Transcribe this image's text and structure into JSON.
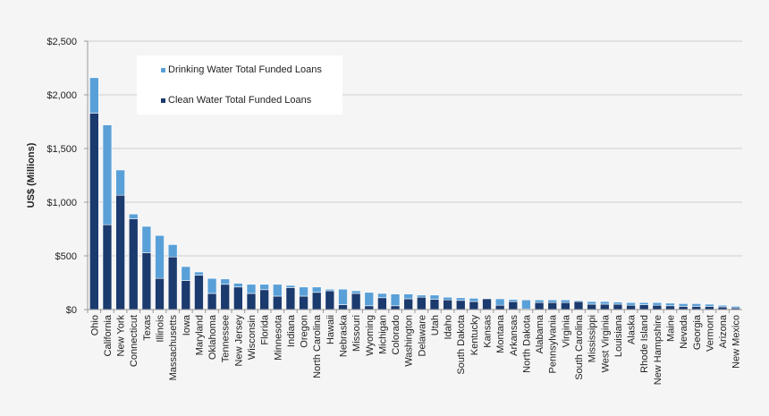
{
  "chart_data": {
    "type": "bar",
    "stacked": true,
    "title": "",
    "xlabel": "",
    "ylabel": "US$ (Millions)",
    "ylim": [
      0,
      2500
    ],
    "yticks": [
      "$0",
      "$500",
      "$1,000",
      "$1,500",
      "$2,000",
      "$2,500"
    ],
    "ytick_values": [
      0,
      500,
      1000,
      1500,
      2000,
      2500
    ],
    "grid": true,
    "legend_position": "upper-left-inset",
    "categories": [
      "Ohio",
      "California",
      "New York",
      "Connecticut",
      "Texas",
      "Illinois",
      "Massachusetts",
      "Iowa",
      "Maryland",
      "Oklahoma",
      "Tennessee",
      "New Jersey",
      "Wisconsin",
      "Florida",
      "Minnesota",
      "Indiana",
      "Oregon",
      "North Carolina",
      "Hawaii",
      "Nebraska",
      "Missouri",
      "Wyoming",
      "Michigan",
      "Colorado",
      "Washington",
      "Delaware",
      "Utah",
      "Idaho",
      "South Dakota",
      "Kentucky",
      "Kansas",
      "Montana",
      "Arkansas",
      "North Dakota",
      "Alabama",
      "Pennsylvania",
      "Virginia",
      "South Carolina",
      "Mississippi",
      "West Virginia",
      "Louisiana",
      "Alaska",
      "Rhode Island",
      "New Hampshire",
      "Maine",
      "Nevada",
      "Georgia",
      "Vermont",
      "Arizona",
      "New Mexico"
    ],
    "series": [
      {
        "name": "Clean Water Total Funded Loans",
        "color": "#1b3a6e",
        "values": [
          1830,
          790,
          1065,
          845,
          530,
          290,
          490,
          270,
          320,
          150,
          235,
          210,
          150,
          185,
          125,
          205,
          125,
          160,
          175,
          45,
          150,
          35,
          110,
          35,
          100,
          115,
          95,
          90,
          85,
          75,
          100,
          40,
          75,
          5,
          65,
          65,
          65,
          75,
          50,
          50,
          50,
          40,
          45,
          40,
          35,
          30,
          30,
          30,
          25,
          15
        ]
      },
      {
        "name": "Drinking Water Total Funded Loans",
        "color": "#5aa0d8",
        "values": [
          330,
          930,
          235,
          45,
          245,
          400,
          115,
          130,
          30,
          140,
          50,
          35,
          85,
          50,
          110,
          20,
          85,
          50,
          15,
          145,
          25,
          125,
          40,
          110,
          45,
          20,
          40,
          25,
          25,
          30,
          0,
          60,
          20,
          85,
          25,
          25,
          25,
          10,
          25,
          25,
          20,
          25,
          20,
          25,
          25,
          25,
          25,
          20,
          15,
          15
        ]
      }
    ]
  },
  "legend": {
    "items": [
      {
        "label": "Drinking Water Total Funded Loans",
        "color": "#5aa0d8"
      },
      {
        "label": "Clean Water Total Funded Loans",
        "color": "#1b3a6e"
      }
    ]
  }
}
